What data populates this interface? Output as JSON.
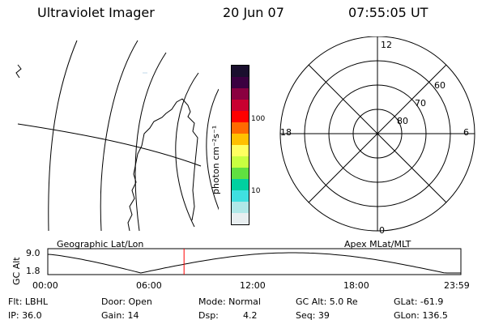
{
  "header": {
    "title": "Ultraviolet Imager",
    "date": "20 Jun 07",
    "time": "07:55:05 UT"
  },
  "map": {
    "label": "Geographic Lat/Lon"
  },
  "colorbar": {
    "label": "photon cm⁻²s⁻¹",
    "tick_100": "100",
    "tick_10": "10",
    "colors": [
      "#1a0f2e",
      "#3b0040",
      "#8a0040",
      "#c80030",
      "#ff0000",
      "#ff6a00",
      "#ffc000",
      "#ffff60",
      "#c8ff40",
      "#60e040",
      "#00d0a0",
      "#40e0e0",
      "#b0e8e8",
      "#e8eef0"
    ]
  },
  "polar": {
    "label": "Apex MLat/MLT",
    "mlt_top": "12",
    "mlt_left": "18",
    "mlt_right": "6",
    "mlt_bottom": "0",
    "lat_60": "60",
    "lat_70": "70",
    "lat_80": "80"
  },
  "altitude_plot": {
    "ylabel": "GC Alt",
    "y_top": "9.0",
    "y_bottom": "1.8",
    "x_ticks": [
      "00:00",
      "06:00",
      "12:00",
      "18:00",
      "23:59"
    ],
    "marker_time": "07:55"
  },
  "footer": {
    "flt": "Flt: LBHL",
    "ip": "IP: 36.0",
    "door": "Door: Open",
    "gain": "Gain: 14",
    "mode": "Mode: Normal",
    "dsp_label": "Dsp:",
    "dsp_value": "4.2",
    "gc_alt": "GC Alt: 5.0 Re",
    "seq": "Seq: 39",
    "glat": "GLat: -61.9",
    "glon": "GLon: 136.5"
  },
  "colors": {
    "marker": "#ff0000",
    "line": "#000000"
  }
}
